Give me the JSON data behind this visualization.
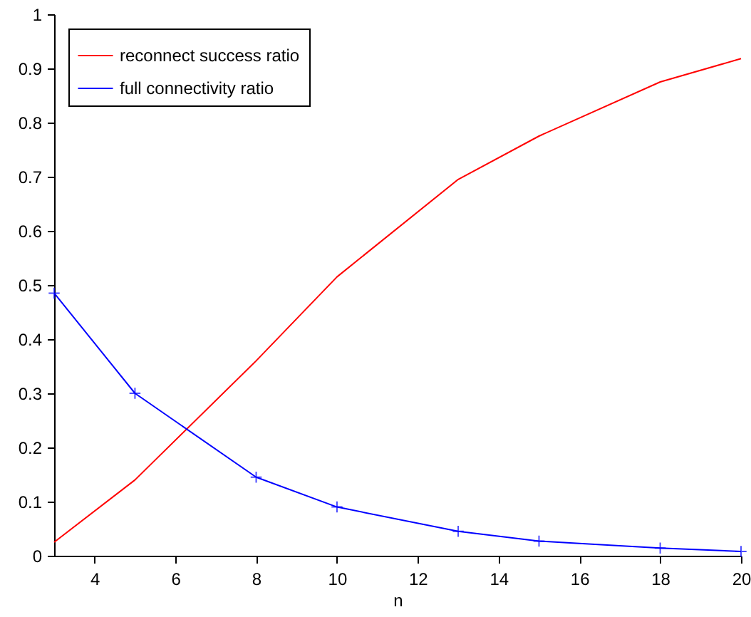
{
  "chart_data": {
    "type": "line",
    "xlabel": "n",
    "x": [
      3,
      5,
      8,
      10,
      13,
      15,
      18,
      20
    ],
    "series": [
      {
        "name": "reconnect success ratio",
        "color": "#ff0000",
        "marker": "none",
        "values": [
          0.025,
          0.14,
          0.36,
          0.515,
          0.695,
          0.775,
          0.875,
          0.918
        ]
      },
      {
        "name": "full connectivity ratio",
        "color": "#0000ff",
        "marker": "cross",
        "values": [
          0.485,
          0.3,
          0.145,
          0.09,
          0.045,
          0.027,
          0.014,
          0.008
        ]
      }
    ],
    "xlim": [
      3,
      20
    ],
    "xticks": [
      4,
      6,
      8,
      10,
      12,
      14,
      16,
      18,
      20
    ],
    "ylim": [
      0,
      1
    ],
    "yticks": [
      0,
      0.1,
      0.2,
      0.3,
      0.4,
      0.5,
      0.6,
      0.7,
      0.8,
      0.9,
      1
    ],
    "grid": false,
    "legend": "top left",
    "line_style": "solid"
  }
}
